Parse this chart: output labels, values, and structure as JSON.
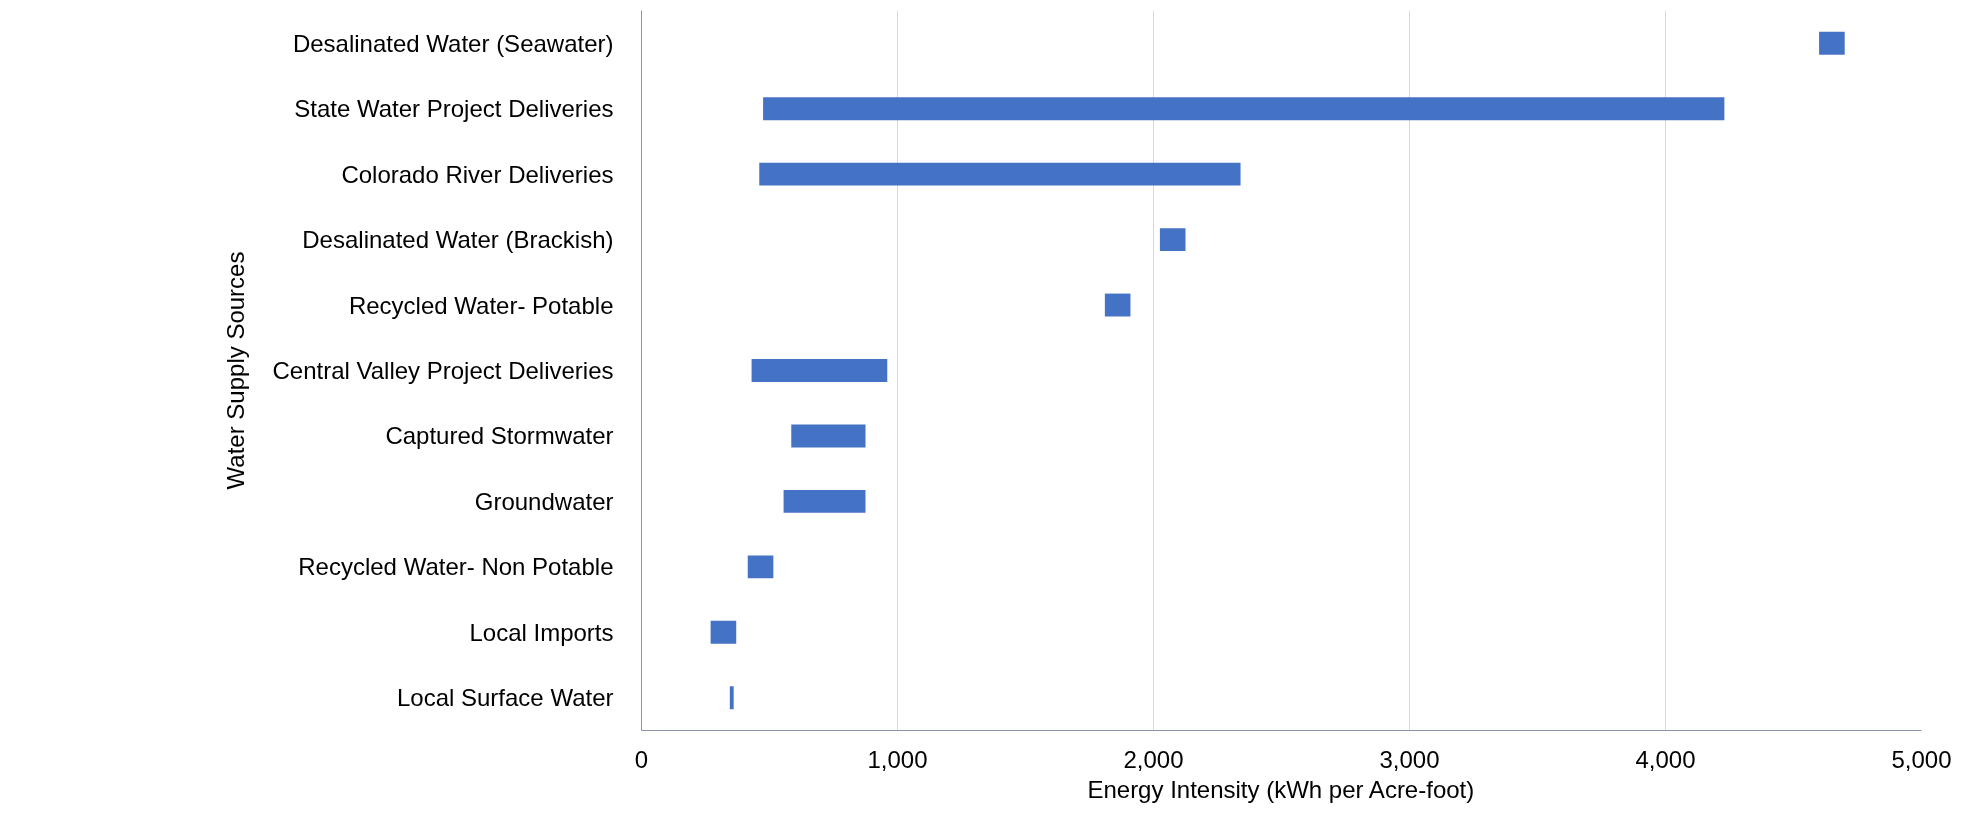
{
  "chart_data": {
    "type": "bar",
    "orientation": "horizontal",
    "categories": [
      "Desalinated Water (Seawater)",
      "State Water Project Deliveries",
      "Colorado River Deliveries",
      "Desalinated Water (Brackish)",
      "Recycled Water- Potable",
      "Central Valley Project Deliveries",
      "Captured Stormwater",
      "Groundwater",
      "Recycled Water- Non Potable",
      "Local Imports",
      "Local Surface Water"
    ],
    "base": [
      4600,
      475,
      460,
      2025,
      1810,
      430,
      585,
      555,
      415,
      270,
      345
    ],
    "values": [
      100,
      3755,
      1880,
      100,
      100,
      530,
      290,
      320,
      100,
      100,
      15
    ],
    "color": "#4472c4",
    "xlabel": "Energy Intensity (kWh per Acre-foot)",
    "ylabel": "Water Supply Sources",
    "xlim": [
      0,
      5000
    ],
    "xticks": [
      {
        "value": 0,
        "label": "0"
      },
      {
        "value": 1000,
        "label": "1,000"
      },
      {
        "value": 2000,
        "label": "2,000"
      },
      {
        "value": 3000,
        "label": "3,000"
      },
      {
        "value": 4000,
        "label": "4,000"
      },
      {
        "value": 5000,
        "label": "5,000"
      }
    ],
    "grid": "x"
  }
}
